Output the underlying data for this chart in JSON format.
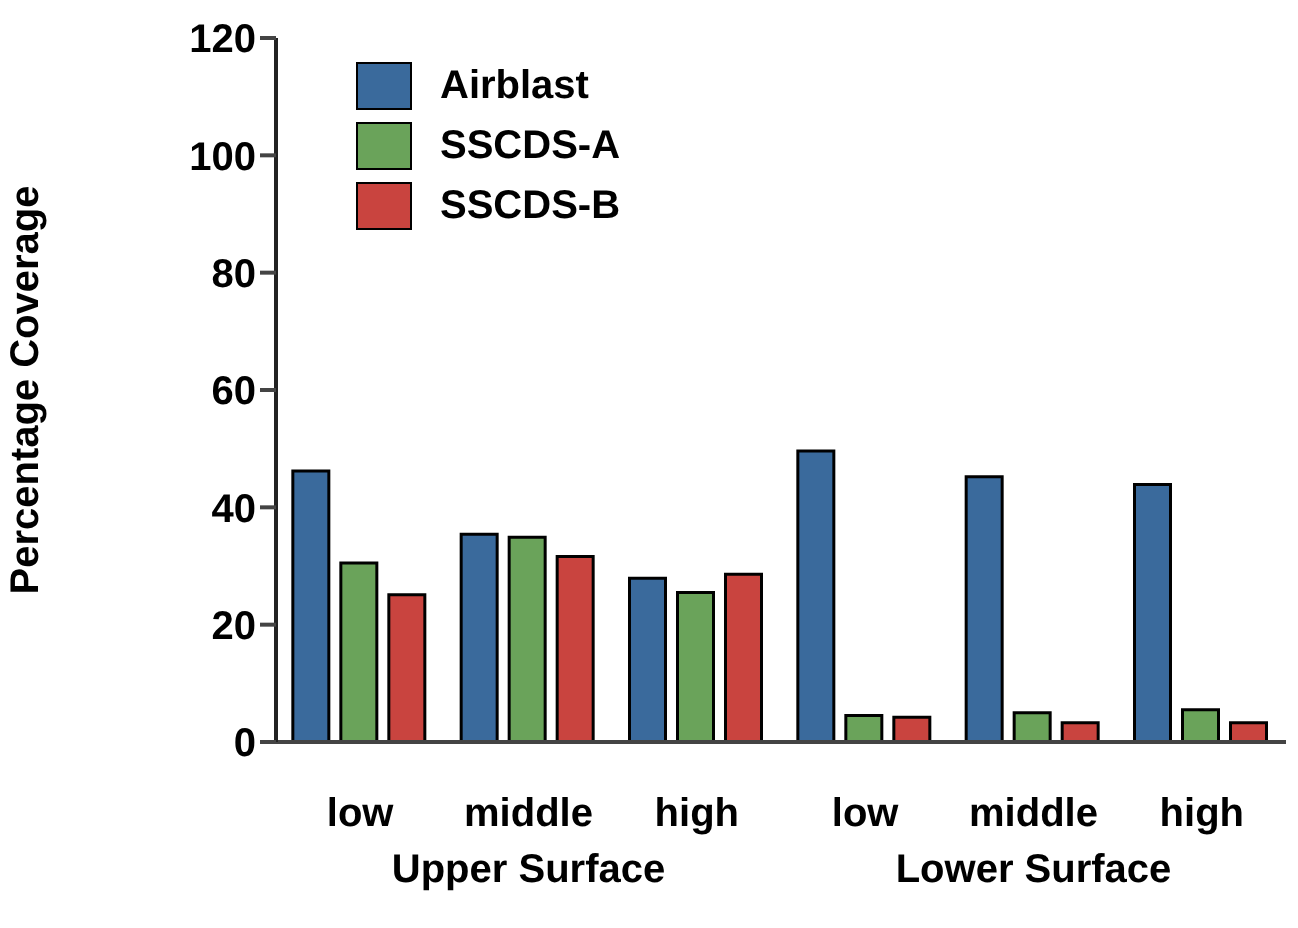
{
  "chart_data": {
    "type": "bar",
    "ylabel": "Percentage Coverage",
    "categories": [
      "low",
      "middle",
      "high",
      "low",
      "middle",
      "high"
    ],
    "series": [
      {
        "name": "Airblast",
        "color": "#3a6a9c",
        "values": [
          46.2,
          35.4,
          27.9,
          49.6,
          45.2,
          43.9
        ]
      },
      {
        "name": "SSCDS-A",
        "color": "#6aa35a",
        "values": [
          30.5,
          34.9,
          25.5,
          4.5,
          5.0,
          5.5
        ]
      },
      {
        "name": "SSCDS-B",
        "color": "#c9443f",
        "values": [
          25.1,
          31.6,
          28.6,
          4.2,
          3.3,
          3.3
        ]
      }
    ],
    "annotations": [
      "Upper Surface",
      "Lower Surface"
    ],
    "ylim": [
      0,
      120
    ],
    "yticks": [
      0,
      20,
      40,
      60,
      80,
      100,
      120
    ],
    "grid": false,
    "legend": "top left"
  }
}
